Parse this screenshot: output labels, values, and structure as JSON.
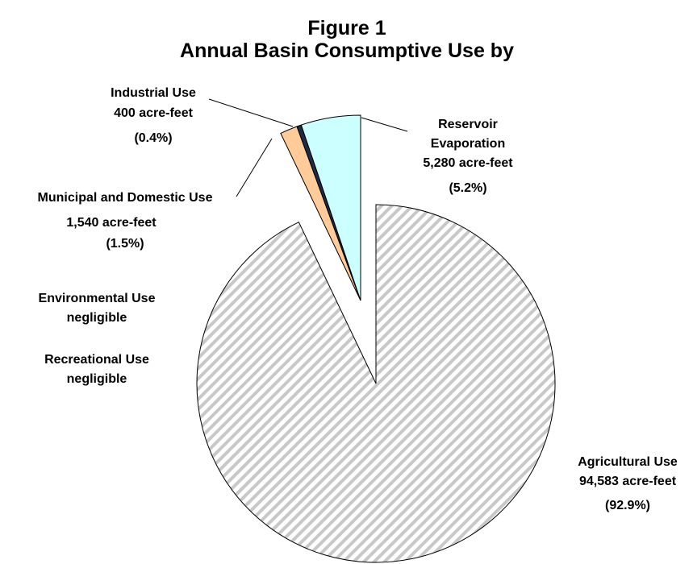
{
  "chart_data": {
    "type": "pie",
    "title": "Figure 1",
    "subtitle": "Annual Basin Consumptive Use by",
    "unit": "acre-feet",
    "slices": [
      {
        "name": "Agricultural Use",
        "value": 94583,
        "value_text": "94,583 acre-feet",
        "percent_text": "(92.9%)",
        "color": "#ffffff",
        "pattern": "diagonal-stripes",
        "exploded": false
      },
      {
        "name": "Environmental Use",
        "value": 0,
        "value_text": "negligible",
        "percent_text": "",
        "color": "#ffffff",
        "exploded": true
      },
      {
        "name": "Recreational Use",
        "value": 0,
        "value_text": "negligible",
        "percent_text": "",
        "color": "#ffffff",
        "exploded": true
      },
      {
        "name": "Municipal and Domestic Use",
        "value": 1540,
        "value_text": "1,540 acre-feet",
        "percent_text": "(1.5%)",
        "color": "#ffcc99",
        "exploded": true
      },
      {
        "name": "Industrial Use",
        "value": 400,
        "value_text": "400 acre-feet",
        "percent_text": "(0.4%)",
        "color": "#1f2a44",
        "exploded": true
      },
      {
        "name": "Reservoir Evaporation",
        "value": 5280,
        "value_text": "5,280 acre-feet",
        "percent_text": "(5.2%)",
        "color": "#ccffff",
        "exploded": true
      }
    ],
    "labels": {
      "industrial": [
        "Industrial Use",
        "400 acre-feet",
        "(0.4%)"
      ],
      "reservoir": [
        "Reservoir",
        "Evaporation",
        "5,280 acre-feet",
        "(5.2%)"
      ],
      "municipal": [
        "Municipal and Domestic Use",
        "1,540 acre-feet",
        "(1.5%)"
      ],
      "environmental": [
        "Environmental Use",
        "negligible"
      ],
      "recreational": [
        "Recreational Use",
        "negligible"
      ],
      "agricultural": [
        "Agricultural Use",
        "94,583 acre-feet",
        "(92.9%)"
      ]
    }
  }
}
